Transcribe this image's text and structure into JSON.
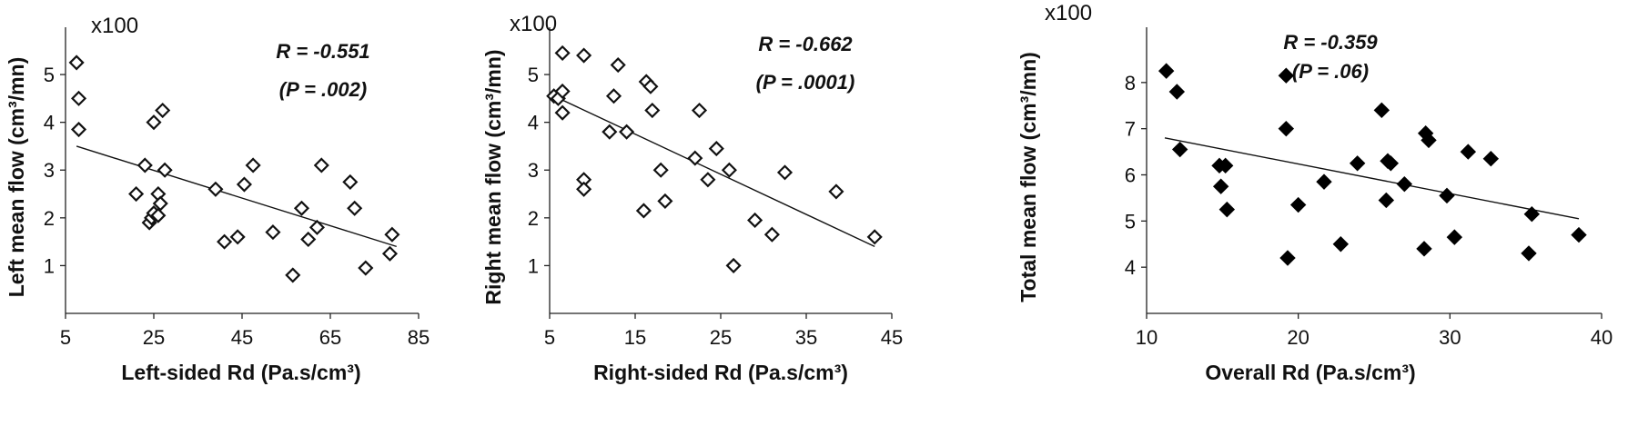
{
  "chart_data": [
    {
      "type": "scatter",
      "marker": "open-diamond",
      "xlabel": "Left-sided Rd (Pa.s/cm³)",
      "ylabel": "Left mean flow (cm³/mn)",
      "y_scale_label": "x100",
      "xlim": [
        5,
        85
      ],
      "ylim": [
        0,
        5.8
      ],
      "x_ticks": [
        "5",
        "25",
        "45",
        "65",
        "85"
      ],
      "y_ticks": [
        "1",
        "2",
        "3",
        "4",
        "5"
      ],
      "annotation_r": "R = -0.551",
      "annotation_p": "(P = .002)",
      "fit_line": {
        "x": [
          7.5,
          80
        ],
        "y": [
          3.5,
          1.4
        ]
      },
      "points": {
        "x": [
          7.5,
          8,
          8,
          21,
          23,
          24,
          24.5,
          25,
          25,
          26,
          26,
          26.5,
          27,
          27.5,
          39,
          41,
          44,
          45.5,
          47.5,
          52,
          56.5,
          58.5,
          60,
          62,
          63,
          69.5,
          70.5,
          73,
          78.5,
          79
        ],
        "y": [
          5.25,
          4.5,
          3.85,
          2.5,
          3.1,
          1.9,
          2.0,
          4.0,
          2.1,
          2.5,
          2.05,
          2.3,
          4.25,
          3.0,
          2.6,
          1.5,
          1.6,
          2.7,
          3.1,
          1.7,
          0.8,
          2.2,
          1.55,
          1.8,
          3.1,
          2.75,
          2.2,
          0.95,
          1.25,
          1.65
        ]
      }
    },
    {
      "type": "scatter",
      "marker": "open-diamond",
      "xlabel": "Right-sided Rd (Pa.s/cm³)",
      "ylabel": "Right mean flow (cm³/mn)",
      "y_scale_label": "x100",
      "xlim": [
        5,
        45
      ],
      "ylim": [
        0,
        5.8
      ],
      "x_ticks": [
        "5",
        "15",
        "25",
        "35",
        "45"
      ],
      "y_ticks": [
        "1",
        "2",
        "3",
        "4",
        "5"
      ],
      "annotation_r": "R = -0.662",
      "annotation_p": "(P = .0001)",
      "fit_line": {
        "x": [
          5.5,
          43
        ],
        "y": [
          4.55,
          1.4
        ]
      },
      "points": {
        "x": [
          5.5,
          6,
          6.5,
          6.5,
          6.5,
          9,
          9,
          9,
          12,
          12.5,
          13,
          14,
          16,
          16.3,
          16.8,
          17,
          18,
          18.5,
          22,
          22.5,
          23.5,
          24.5,
          26,
          26.5,
          29,
          31,
          32.5,
          38.5,
          43
        ],
        "y": [
          4.55,
          4.5,
          5.45,
          4.65,
          4.2,
          5.4,
          2.8,
          2.6,
          3.8,
          4.55,
          5.2,
          3.8,
          2.15,
          4.85,
          4.75,
          4.25,
          3.0,
          2.35,
          3.25,
          4.25,
          2.8,
          3.45,
          3.0,
          1.0,
          1.95,
          1.65,
          2.95,
          2.55,
          1.6
        ]
      }
    },
    {
      "type": "scatter",
      "marker": "filled-diamond",
      "xlabel": "Overall Rd (Pa.s/cm³)",
      "ylabel": "Total mean flow (cm³/mn)",
      "y_scale_label": "x100",
      "xlim": [
        10,
        40
      ],
      "ylim": [
        3,
        9
      ],
      "x_ticks": [
        "10",
        "20",
        "30",
        "40"
      ],
      "y_ticks": [
        "4",
        "5",
        "6",
        "7",
        "8"
      ],
      "annotation_r": "R = -0.359",
      "annotation_p": "(P = .06)",
      "fit_line": {
        "x": [
          11.2,
          38.5
        ],
        "y": [
          6.8,
          5.05
        ]
      },
      "points": {
        "x": [
          11.3,
          12,
          12.2,
          14.8,
          14.9,
          15.2,
          15.3,
          19.2,
          19.2,
          19.3,
          20,
          21.7,
          22.8,
          23.9,
          25.5,
          25.8,
          25.9,
          26.1,
          27,
          28.3,
          28.4,
          28.6,
          29.8,
          30.3,
          31.2,
          32.7,
          35.2,
          35.4,
          38.5
        ],
        "y": [
          8.25,
          7.8,
          6.55,
          6.2,
          5.75,
          6.2,
          5.25,
          8.15,
          7.0,
          4.2,
          5.35,
          5.85,
          4.5,
          6.25,
          7.4,
          5.45,
          6.3,
          6.25,
          5.8,
          4.4,
          6.9,
          6.75,
          5.55,
          4.65,
          6.5,
          6.35,
          4.3,
          5.15,
          4.7
        ]
      }
    }
  ]
}
